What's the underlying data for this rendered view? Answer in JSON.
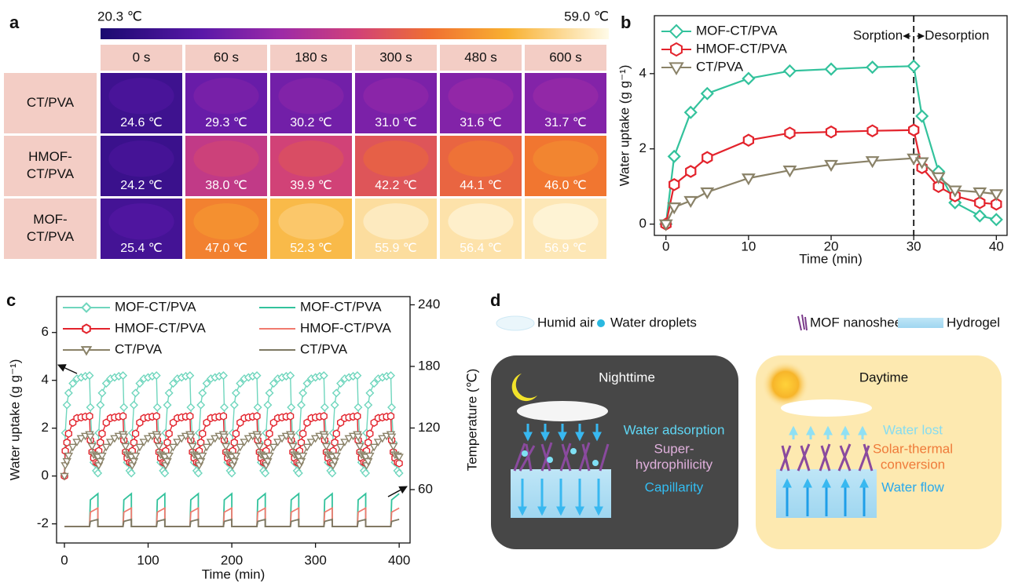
{
  "panel_a": {
    "panel_label": "a",
    "colorbar": {
      "min": "20.3 ℃",
      "max": "59.0 ℃"
    },
    "columns": [
      "0 s",
      "60 s",
      "180 s",
      "300 s",
      "480 s",
      "600 s"
    ],
    "rows": [
      {
        "label": [
          "CT/PVA"
        ],
        "temperatures": [
          "24.6 ℃",
          "29.3 ℃",
          "30.2 ℃",
          "31.0 ℃",
          "31.6 ℃",
          "31.7 ℃"
        ]
      },
      {
        "label": [
          "HMOF-",
          "CT/PVA"
        ],
        "temperatures": [
          "24.2 ℃",
          "38.0 ℃",
          "39.9 ℃",
          "42.2 ℃",
          "44.1 ℃",
          "46.0 ℃"
        ]
      },
      {
        "label": [
          "MOF-",
          "CT/PVA"
        ],
        "temperatures": [
          "25.4 ℃",
          "47.0 ℃",
          "52.3 ℃",
          "55.9 ℃",
          "56.4 ℃",
          "56.9 ℃"
        ]
      }
    ]
  },
  "chart_data": [
    {
      "type": "line",
      "panel_label": "b",
      "x_label": "Time (min)",
      "y_label": "Water uptake (g g⁻¹)",
      "x": [
        0,
        1,
        3,
        5,
        10,
        15,
        20,
        25,
        30,
        31,
        33,
        35,
        38,
        40
      ],
      "xlim": [
        -1.4,
        41.3
      ],
      "ylim": [
        -0.3,
        5.54
      ],
      "xticks": [
        0,
        10,
        20,
        30,
        40
      ],
      "yticks": [
        0,
        2,
        4
      ],
      "legend": "upper left",
      "divider_x": 30,
      "annotations": {
        "left": "Sorption",
        "right": "Desorption"
      },
      "series": [
        {
          "name": "MOF-CT/PVA",
          "color": "#33c29c",
          "marker": "diamond",
          "values": [
            0,
            1.8,
            2.97,
            3.47,
            3.87,
            4.07,
            4.12,
            4.17,
            4.2,
            2.87,
            1.4,
            0.57,
            0.22,
            0.12
          ]
        },
        {
          "name": "HMOF-CT/PVA",
          "color": "#e3232c",
          "marker": "hexagon",
          "values": [
            0,
            1.05,
            1.4,
            1.77,
            2.23,
            2.42,
            2.45,
            2.48,
            2.5,
            1.5,
            1.0,
            0.75,
            0.57,
            0.53
          ]
        },
        {
          "name": "CT/PVA",
          "color": "#8a8268",
          "marker": "triangle-down",
          "values": [
            0,
            0.45,
            0.62,
            0.85,
            1.22,
            1.43,
            1.58,
            1.68,
            1.75,
            1.65,
            1.25,
            0.9,
            0.85,
            0.8
          ]
        }
      ]
    },
    {
      "type": "line",
      "panel_label": "c",
      "x_label": "Time (min)",
      "y_label": "Water uptake (g g⁻¹)",
      "y2_label": "Temperature (℃)",
      "x": [
        0,
        1,
        3,
        5,
        10,
        15,
        20,
        25,
        30,
        31,
        33,
        35,
        38,
        40,
        41,
        43,
        45,
        50,
        55,
        60,
        65,
        70,
        71,
        73,
        75,
        78,
        80,
        81,
        83,
        85,
        90,
        95,
        100,
        105,
        110,
        111,
        113,
        115,
        118,
        120,
        121,
        123,
        125,
        130,
        135,
        140,
        145,
        150,
        151,
        153,
        155,
        158,
        160,
        161,
        163,
        165,
        170,
        175,
        180,
        185,
        190,
        191,
        193,
        195,
        198,
        200,
        201,
        203,
        205,
        210,
        215,
        220,
        225,
        230,
        231,
        233,
        235,
        238,
        240,
        241,
        243,
        245,
        250,
        255,
        260,
        265,
        270,
        271,
        273,
        275,
        278,
        280,
        281,
        283,
        285,
        290,
        295,
        300,
        305,
        310,
        311,
        313,
        315,
        318,
        320,
        321,
        323,
        325,
        330,
        335,
        340,
        345,
        350,
        351,
        353,
        355,
        358,
        360,
        361,
        363,
        365,
        370,
        375,
        380,
        385,
        390,
        391,
        393,
        395,
        398,
        400
      ],
      "xlim": [
        -9.4,
        413
      ],
      "ylim": [
        -2.8,
        7.5
      ],
      "y2lim": [
        8,
        248
      ],
      "xticks": [
        0,
        100,
        200,
        300,
        400
      ],
      "yticks": [
        -2,
        0,
        2,
        4,
        6
      ],
      "y2ticks": [
        60,
        120,
        180,
        240
      ],
      "legend": "upper left",
      "series": [
        {
          "name": "MOF-CT/PVA",
          "color": "#6fd6bd",
          "marker": "diamond",
          "values": [
            0,
            1.8,
            2.97,
            3.47,
            3.87,
            4.07,
            4.12,
            4.17,
            4.2,
            2.87,
            1.4,
            0.57,
            0.22,
            0.12,
            1.8,
            2.97,
            3.47,
            3.87,
            4.07,
            4.12,
            4.17,
            4.2,
            2.87,
            1.4,
            0.57,
            0.22,
            0.12,
            1.8,
            2.97,
            3.47,
            3.87,
            4.07,
            4.12,
            4.17,
            4.2,
            2.87,
            1.4,
            0.57,
            0.22,
            0.12,
            1.8,
            2.97,
            3.47,
            3.87,
            4.07,
            4.12,
            4.17,
            4.2,
            2.87,
            1.4,
            0.57,
            0.22,
            0.12,
            1.8,
            2.97,
            3.47,
            3.87,
            4.07,
            4.12,
            4.17,
            4.2,
            2.87,
            1.4,
            0.57,
            0.22,
            0.12,
            1.8,
            2.97,
            3.47,
            3.87,
            4.07,
            4.12,
            4.17,
            4.2,
            2.87,
            1.4,
            0.57,
            0.22,
            0.12,
            1.8,
            2.97,
            3.47,
            3.87,
            4.07,
            4.12,
            4.17,
            4.2,
            2.87,
            1.4,
            0.57,
            0.22,
            0.12,
            1.8,
            2.97,
            3.47,
            3.87,
            4.07,
            4.12,
            4.17,
            4.2,
            2.87,
            1.4,
            0.57,
            0.22,
            0.12,
            1.8,
            2.97,
            3.47,
            3.87,
            4.07,
            4.12,
            4.17,
            4.2,
            2.87,
            1.4,
            0.57,
            0.22,
            0.12,
            1.8,
            2.97,
            3.47,
            3.87,
            4.07,
            4.12,
            4.17,
            4.2,
            2.87,
            1.4,
            0.57,
            0.22,
            0.12
          ]
        },
        {
          "name": "HMOF-CT/PVA",
          "color": "#e3232c",
          "marker": "hexagon",
          "values": [
            0,
            1.05,
            1.4,
            1.77,
            2.23,
            2.42,
            2.45,
            2.48,
            2.5,
            1.5,
            1.0,
            0.75,
            0.57,
            0.53,
            1.05,
            1.4,
            1.77,
            2.23,
            2.42,
            2.45,
            2.48,
            2.5,
            1.5,
            1.0,
            0.75,
            0.57,
            0.53,
            1.05,
            1.4,
            1.77,
            2.23,
            2.42,
            2.45,
            2.48,
            2.5,
            1.5,
            1.0,
            0.75,
            0.57,
            0.53,
            1.05,
            1.4,
            1.77,
            2.23,
            2.42,
            2.45,
            2.48,
            2.5,
            1.5,
            1.0,
            0.75,
            0.57,
            0.53,
            1.05,
            1.4,
            1.77,
            2.23,
            2.42,
            2.45,
            2.48,
            2.5,
            1.5,
            1.0,
            0.75,
            0.57,
            0.53,
            1.05,
            1.4,
            1.77,
            2.23,
            2.42,
            2.45,
            2.48,
            2.5,
            1.5,
            1.0,
            0.75,
            0.57,
            0.53,
            1.05,
            1.4,
            1.77,
            2.23,
            2.42,
            2.45,
            2.48,
            2.5,
            1.5,
            1.0,
            0.75,
            0.57,
            0.53,
            1.05,
            1.4,
            1.77,
            2.23,
            2.42,
            2.45,
            2.48,
            2.5,
            1.5,
            1.0,
            0.75,
            0.57,
            0.53,
            1.05,
            1.4,
            1.77,
            2.23,
            2.42,
            2.45,
            2.48,
            2.5,
            1.5,
            1.0,
            0.75,
            0.57,
            0.53,
            1.05,
            1.4,
            1.77,
            2.23,
            2.42,
            2.45,
            2.48,
            2.5,
            1.5,
            1.0,
            0.75,
            0.57,
            0.53
          ]
        },
        {
          "name": "CT/PVA",
          "color": "#8a8268",
          "marker": "triangle-down",
          "values": [
            0,
            0.45,
            0.62,
            0.85,
            1.22,
            1.43,
            1.58,
            1.68,
            1.75,
            1.65,
            1.25,
            0.9,
            0.85,
            0.8,
            0.45,
            0.62,
            0.85,
            1.22,
            1.43,
            1.58,
            1.68,
            1.75,
            1.65,
            1.25,
            0.9,
            0.85,
            0.8,
            0.45,
            0.62,
            0.85,
            1.22,
            1.43,
            1.58,
            1.68,
            1.75,
            1.65,
            1.25,
            0.9,
            0.85,
            0.8,
            0.45,
            0.62,
            0.85,
            1.22,
            1.43,
            1.58,
            1.68,
            1.75,
            1.65,
            1.25,
            0.9,
            0.85,
            0.8,
            0.45,
            0.62,
            0.85,
            1.22,
            1.43,
            1.58,
            1.68,
            1.75,
            1.65,
            1.25,
            0.9,
            0.85,
            0.8,
            0.45,
            0.62,
            0.85,
            1.22,
            1.43,
            1.58,
            1.68,
            1.75,
            1.65,
            1.25,
            0.9,
            0.85,
            0.8,
            0.45,
            0.62,
            0.85,
            1.22,
            1.43,
            1.58,
            1.68,
            1.75,
            1.65,
            1.25,
            0.9,
            0.85,
            0.8,
            0.45,
            0.62,
            0.85,
            1.22,
            1.43,
            1.58,
            1.68,
            1.75,
            1.65,
            1.25,
            0.9,
            0.85,
            0.8,
            0.45,
            0.62,
            0.85,
            1.22,
            1.43,
            1.58,
            1.68,
            1.75,
            1.65,
            1.25,
            0.9,
            0.85,
            0.8,
            0.45,
            0.62,
            0.85,
            1.22,
            1.43,
            1.58,
            1.68,
            1.75,
            1.65,
            1.25,
            0.9,
            0.85,
            0.8
          ]
        },
        {
          "name": "MOF-CT/PVA",
          "color": "#33c29c",
          "axis": "y2",
          "x": [
            0,
            30,
            31,
            40,
            40,
            70,
            71,
            80,
            80,
            110,
            111,
            120,
            120,
            150,
            151,
            160,
            160,
            190,
            191,
            200,
            200,
            230,
            231,
            240,
            240,
            270,
            271,
            280,
            280,
            310,
            311,
            320,
            320,
            350,
            351,
            360,
            360,
            390,
            391,
            400
          ],
          "values": [
            24,
            24,
            50,
            56,
            24,
            24,
            50,
            56,
            24,
            24,
            50,
            56,
            24,
            24,
            50,
            56,
            24,
            24,
            50,
            56,
            24,
            24,
            50,
            56,
            24,
            24,
            50,
            56,
            24,
            24,
            50,
            56,
            24,
            24,
            50,
            56,
            24,
            24,
            50,
            56
          ]
        },
        {
          "name": "HMOF-CT/PVA",
          "color": "#f07a6e",
          "axis": "y2",
          "x": [
            0,
            30,
            31,
            40,
            40,
            70,
            71,
            80,
            80,
            110,
            111,
            120,
            120,
            150,
            151,
            160,
            160,
            190,
            191,
            200,
            200,
            230,
            231,
            240,
            240,
            270,
            271,
            280,
            280,
            310,
            311,
            320,
            320,
            350,
            351,
            360,
            360,
            390,
            391,
            400
          ],
          "values": [
            24,
            24,
            38,
            42,
            24,
            24,
            38,
            42,
            24,
            24,
            38,
            42,
            24,
            24,
            38,
            42,
            24,
            24,
            38,
            42,
            24,
            24,
            38,
            42,
            24,
            24,
            38,
            42,
            24,
            24,
            38,
            42,
            24,
            24,
            38,
            42,
            24,
            24,
            38,
            42
          ]
        },
        {
          "name": "CT/PVA",
          "color": "#7d7862",
          "axis": "y2",
          "x": [
            0,
            30,
            31,
            40,
            40,
            70,
            71,
            80,
            80,
            110,
            111,
            120,
            120,
            150,
            151,
            160,
            160,
            190,
            191,
            200,
            200,
            230,
            231,
            240,
            240,
            270,
            271,
            280,
            280,
            310,
            311,
            320,
            320,
            350,
            351,
            360,
            360,
            390,
            391,
            400
          ],
          "values": [
            24,
            24,
            29,
            31,
            24,
            24,
            29,
            31,
            24,
            24,
            29,
            31,
            24,
            24,
            29,
            31,
            24,
            24,
            29,
            31,
            24,
            24,
            29,
            31,
            24,
            24,
            29,
            31,
            24,
            24,
            29,
            31,
            24,
            24,
            29,
            31,
            24,
            24,
            29,
            31
          ]
        }
      ]
    }
  ],
  "panel_d": {
    "panel_label": "d",
    "legend": [
      "Humid air",
      "Water droplets",
      "MOF nanosheets",
      "Hydrogel"
    ],
    "nighttime": {
      "title": "Nighttime",
      "labels": [
        [
          "Water adsorption"
        ],
        [
          "Super-",
          "hydrophilicity"
        ],
        [
          "Capillarity"
        ]
      ]
    },
    "daytime": {
      "title": "Daytime",
      "labels": [
        [
          "Water lost"
        ],
        [
          "Solar-thermal",
          "conversion"
        ],
        [
          "Water flow"
        ]
      ]
    }
  }
}
